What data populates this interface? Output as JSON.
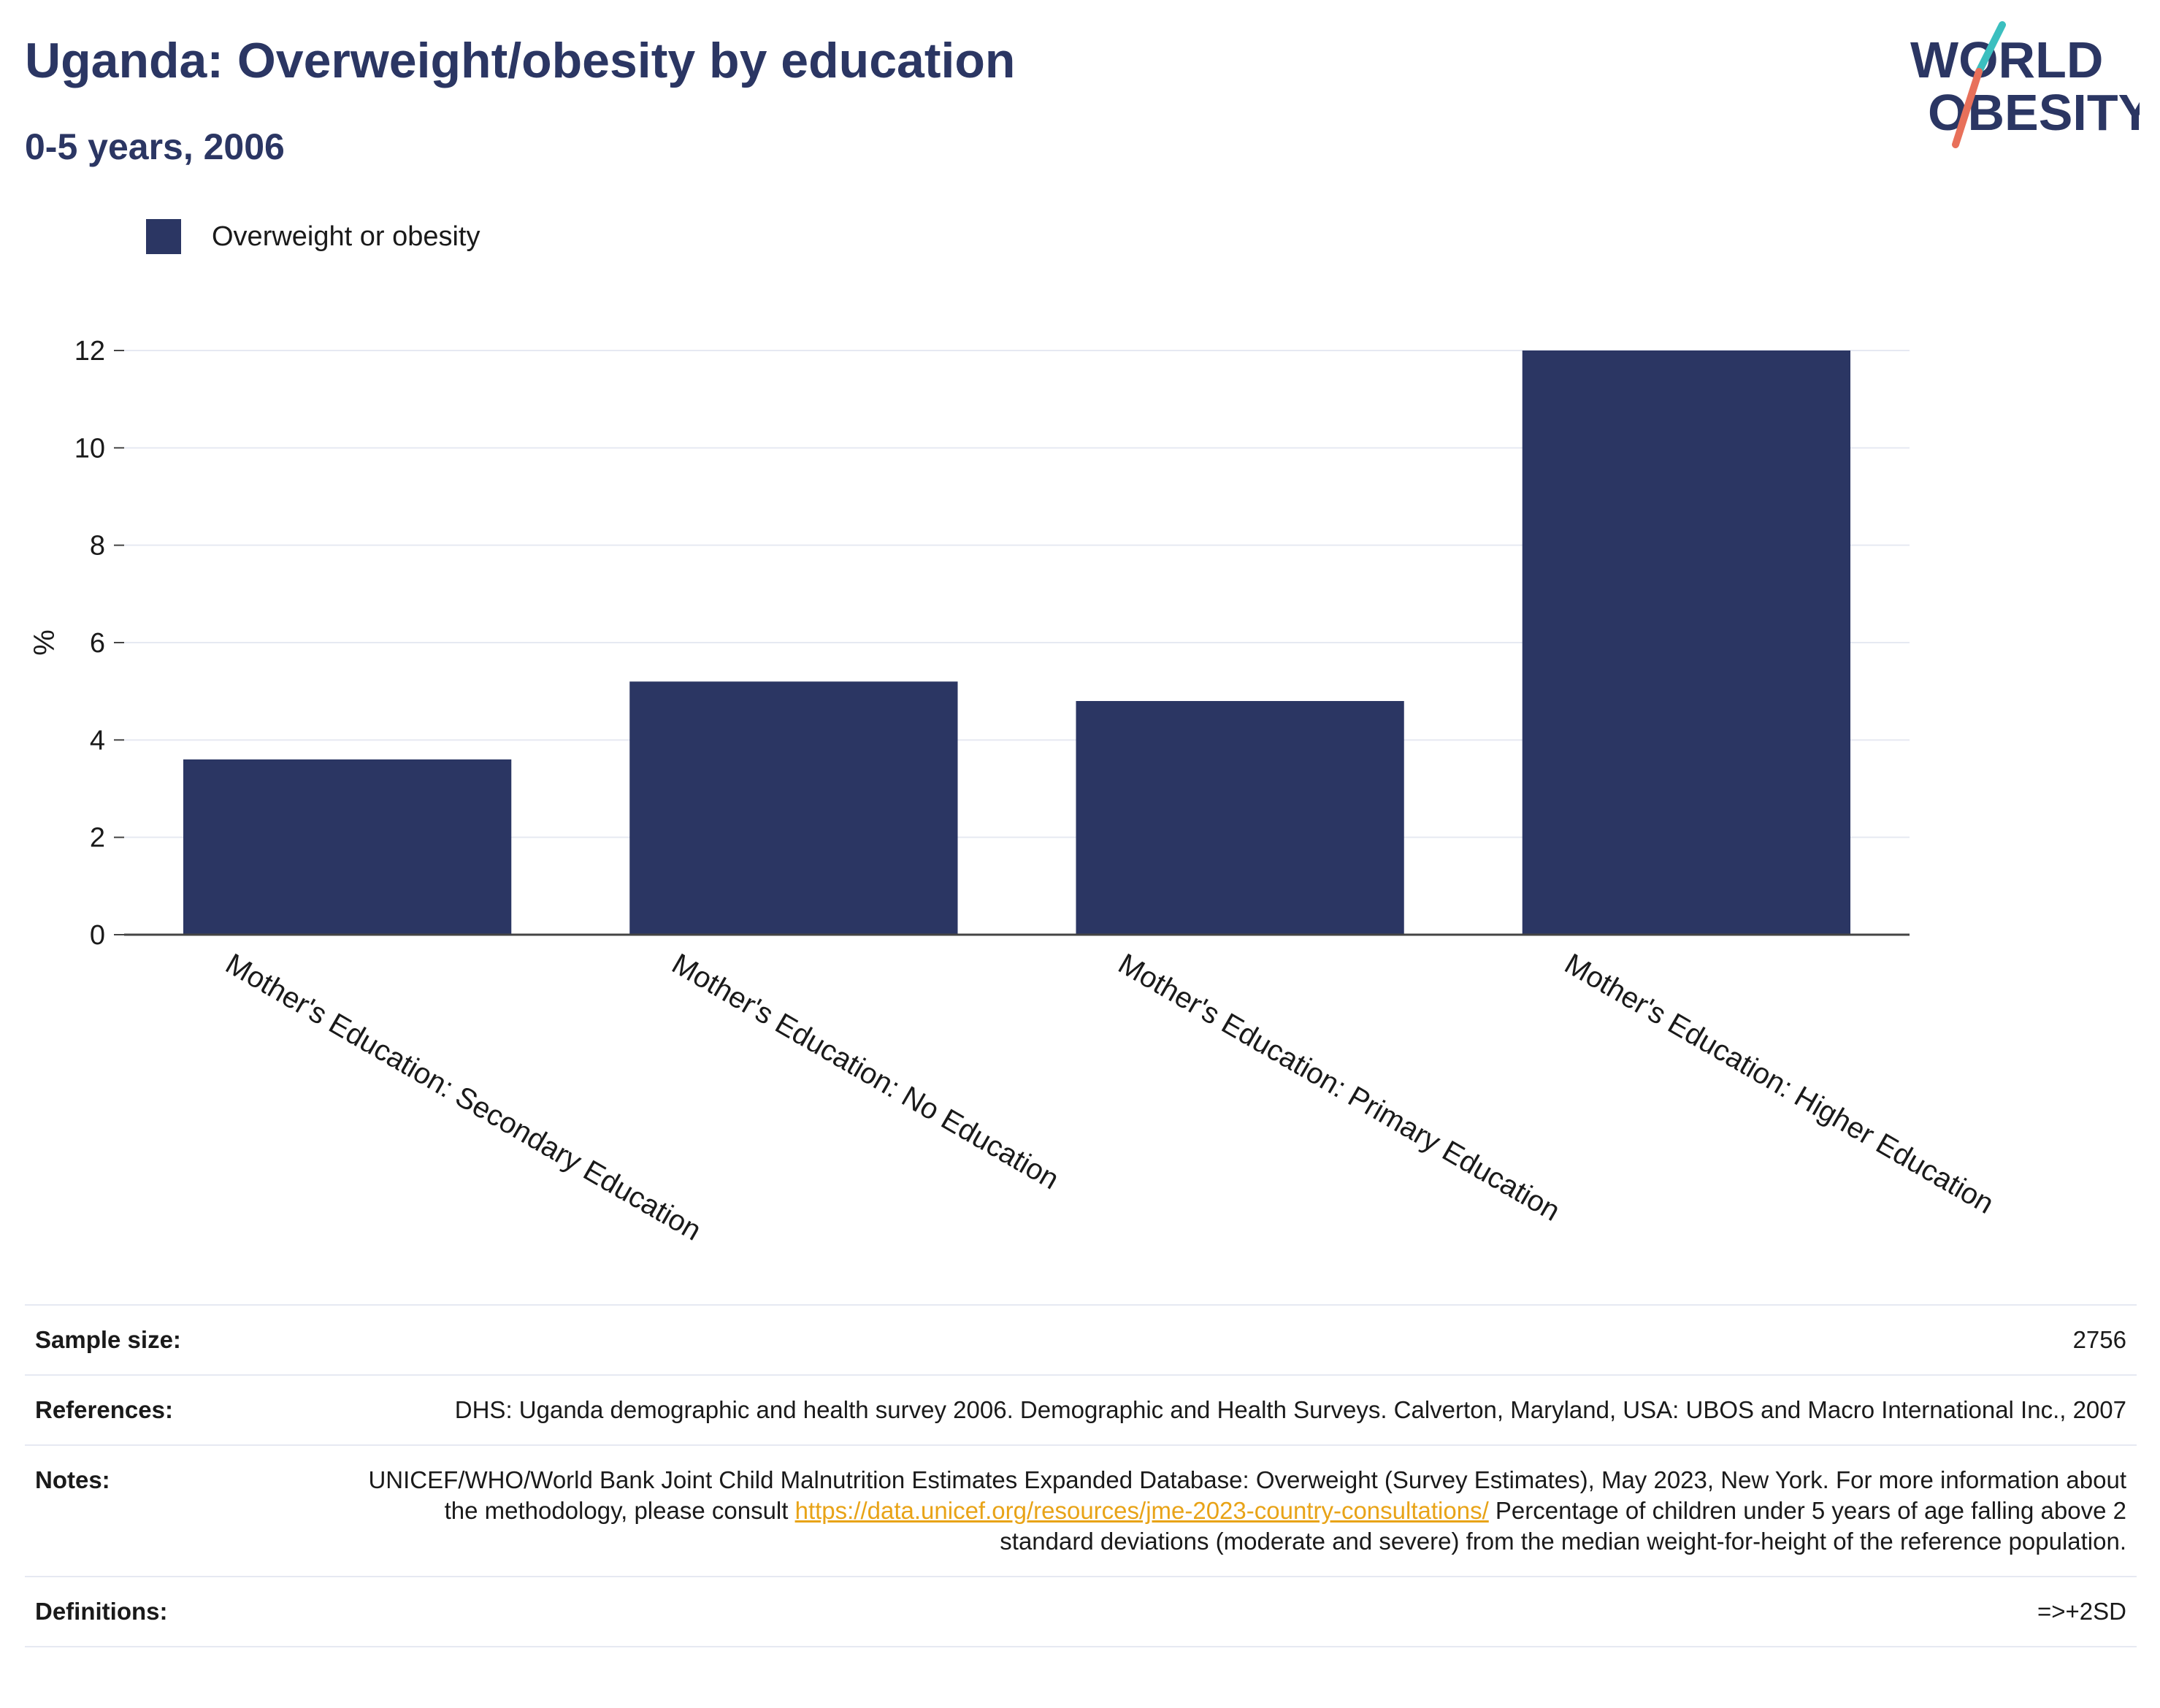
{
  "header": {
    "title": "Uganda: Overweight/obesity by education",
    "subtitle": "0-5 years, 2006"
  },
  "logo": {
    "line1": "WORLD",
    "line2": "OBESITY",
    "accent_colors": [
      "#3bbfbf",
      "#e8705a"
    ],
    "text_color": "#2b3663"
  },
  "legend": {
    "label": "Overweight or obesity",
    "color": "#2b3663"
  },
  "chart_data": {
    "type": "bar",
    "categories": [
      "Mother's Education: Secondary Education",
      "Mother's Education: No Education",
      "Mother's Education: Primary Education",
      "Mother's Education: Higher Education"
    ],
    "series": [
      {
        "name": "Overweight or obesity",
        "values": [
          3.6,
          5.2,
          4.8,
          12.0
        ]
      }
    ],
    "ylabel": "%",
    "xlabel": "",
    "ylim": [
      0,
      12
    ],
    "yticks": [
      0,
      2,
      4,
      6,
      8,
      10,
      12
    ],
    "grid": true,
    "legend_position": "top-left",
    "bar_color": "#2b3663"
  },
  "info": {
    "sample_size": {
      "label": "Sample size:",
      "value": "2756"
    },
    "references": {
      "label": "References:",
      "value": "DHS: Uganda demographic and health survey 2006. Demographic and Health Surveys. Calverton, Maryland, USA: UBOS and Macro International Inc., 2007"
    },
    "notes": {
      "label": "Notes:",
      "text_before": "UNICEF/WHO/World Bank Joint Child Malnutrition Estimates Expanded Database: Overweight (Survey Estimates), May 2023, New York. For more information about the methodology, please consult ",
      "link": "https://data.unicef.org/resources/jme-2023-country-consultations/",
      "text_after": " Percentage of children under 5 years of age falling above 2 standard deviations (moderate and severe) from the median weight-for-height of the reference population."
    },
    "definitions": {
      "label": "Definitions:",
      "value": "=>+2SD"
    }
  }
}
